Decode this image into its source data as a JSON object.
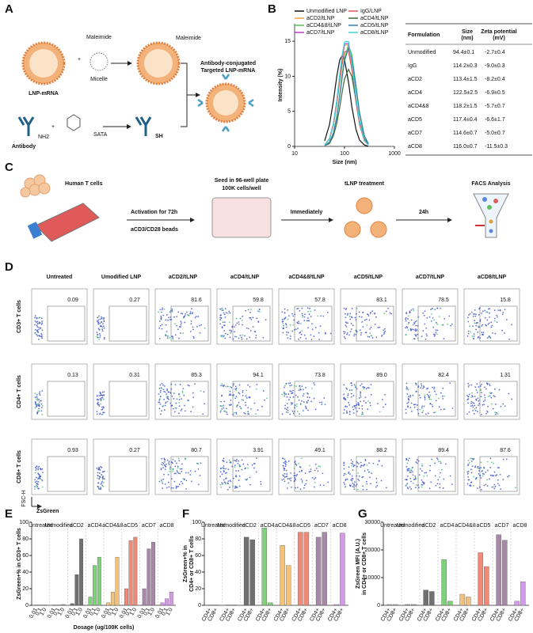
{
  "panel_labels": [
    "A",
    "B",
    "C",
    "D",
    "E",
    "F",
    "G"
  ],
  "diagram_a": {
    "lnp": "LNP-mRNA",
    "maleimide_top": "Maleimide",
    "micelle": "Micelle",
    "maleimide_right": "Maleimide",
    "antibody": "Antibody",
    "nh2": "NH2",
    "sata": "SATA",
    "sh": "SH",
    "product": [
      "Antibody-conjugated",
      "Targeted LNP-mRNA"
    ]
  },
  "workflow": {
    "human_t": "Human T cells",
    "activation": "Activation for 72h",
    "beads": "aCD3/CD28 beads",
    "seed": "Seed in 96-well plate",
    "cells": "100K cells/well",
    "immediately": "Immediately",
    "tlnp": "tLNP treatment",
    "h24": "24h",
    "facs": "FACS Analysis"
  },
  "table": {
    "header": [
      [
        "Formulation"
      ],
      [
        "Size",
        "(nm)"
      ],
      [
        "Zeta potential",
        "(mV)"
      ]
    ],
    "rows": [
      [
        "Unmodified",
        "94.4±0.1",
        "-2.7±0.4"
      ],
      [
        "IgG",
        "114.2±0.3",
        "-9.0±0.3"
      ],
      [
        "aCD2",
        "113.4±1.5",
        "-8.2±0.4"
      ],
      [
        "aCD4",
        "122.5±2.5",
        "-6.9±0.5"
      ],
      [
        "aCD4&8",
        "118.2±1.5",
        "-5.7±0.7"
      ],
      [
        "aCD5",
        "117.4±0.4",
        "-6.6±1.7"
      ],
      [
        "aCD7",
        "114.6±0.7",
        "-5.0±0.7"
      ],
      [
        "aCD8",
        "116.0±0.7",
        "-11.5±0.3"
      ]
    ]
  },
  "flow": {
    "columns": [
      "Untreated",
      "Umodified LNP",
      "aCD2/tLNP",
      "aCD4/tLNP",
      "aCD4&8/tLNP",
      "aCD5/tLNP",
      "aCD7/tLNP",
      "aCD8/tLNP"
    ],
    "rows": [
      "CD3+ T cells",
      "CD4+ T cells",
      "CD8+ T cells"
    ],
    "values": [
      [
        "0.09",
        "0.27",
        "81.6",
        "59.8",
        "57.8",
        "83.1",
        "78.5",
        "15.8"
      ],
      [
        "0.13",
        "0.31",
        "85.3",
        "94.1",
        "73.8",
        "89.0",
        "82.4",
        "1.31"
      ],
      [
        "0.93",
        "0.27",
        "80.7",
        "3.91",
        "49.1",
        "88.2",
        "89.4",
        "87.6"
      ]
    ],
    "y_axis": "FSC-H",
    "x_axis": "ZsGreen"
  },
  "chart_data": [
    {
      "type": "line",
      "xlabel": "Size (nm)",
      "ylabel": "Intensity (%)",
      "log_x": true,
      "x": [
        40,
        50,
        60,
        70,
        80,
        90,
        100,
        120,
        140,
        170,
        200,
        250,
        300
      ],
      "xlim": [
        10,
        1000
      ],
      "xticks": [
        10,
        100,
        1000
      ],
      "ylim": [
        0,
        17.5
      ],
      "yticks": [
        0,
        5,
        10,
        15
      ],
      "series": [
        {
          "name": "Unmodified LNP",
          "color": "#111111",
          "values": [
            0.8,
            3.1,
            6.5,
            10.0,
            12.3,
            13.0,
            12.4,
            9.2,
            5.7,
            2.4,
            0.9,
            0.2,
            0.0
          ]
        },
        {
          "name": "IgG/LNP",
          "color": "#e0574c",
          "values": [
            0.2,
            1.0,
            3.0,
            6.0,
            9.2,
            11.8,
            13.5,
            13.6,
            11.0,
            6.3,
            3.1,
            0.8,
            0.2
          ]
        },
        {
          "name": "aCD2/tLNP",
          "color": "#f2a43a",
          "values": [
            0.2,
            1.1,
            3.2,
            6.4,
            9.8,
            12.7,
            14.4,
            14.5,
            11.7,
            6.8,
            3.3,
            0.9,
            0.2
          ]
        },
        {
          "name": "aCD4/tLNP",
          "color": "#3d6b35",
          "values": [
            0.1,
            0.4,
            1.5,
            3.3,
            5.5,
            7.8,
            9.6,
            11.0,
            10.0,
            6.6,
            3.7,
            1.1,
            0.3
          ]
        },
        {
          "name": "aCD4&8/tLNP",
          "color": "#5cc050",
          "values": [
            0.1,
            0.6,
            1.9,
            4.3,
            7.3,
            10.3,
            12.6,
            14.5,
            13.1,
            8.7,
            4.9,
            1.5,
            0.4
          ]
        },
        {
          "name": "aCD5/tLNP",
          "color": "#2f7fb6",
          "values": [
            0.1,
            0.6,
            1.9,
            4.1,
            7.0,
            9.9,
            12.2,
            14.0,
            12.7,
            8.4,
            4.7,
            1.5,
            0.4
          ]
        },
        {
          "name": "aCD7/tLNP",
          "color": "#b43fc4",
          "values": [
            0.2,
            1.1,
            3.3,
            6.5,
            10.0,
            12.8,
            14.6,
            14.7,
            11.9,
            6.9,
            3.4,
            0.9,
            0.2
          ]
        },
        {
          "name": "aCD8/tLNP",
          "color": "#3ed6d6",
          "values": [
            0.2,
            1.1,
            3.3,
            6.6,
            10.2,
            13.1,
            14.9,
            15.0,
            12.1,
            7.0,
            3.5,
            0.9,
            0.2
          ]
        }
      ]
    },
    {
      "type": "bar",
      "xlabel": "Dosage (ug/100K cells)",
      "ylabel": [
        "ZsGreen+% in CD3+ T cells"
      ],
      "categories": [
        "0.01",
        "0.1",
        "1.0"
      ],
      "ylim": [
        0,
        100
      ],
      "yticks": [
        0,
        20,
        40,
        60,
        80,
        100
      ],
      "series": [
        {
          "name": "Untreated",
          "color": "#b0b0b0",
          "values": [
            0.5,
            0.5,
            0.5
          ]
        },
        {
          "name": "Unmodified",
          "color": "#9a9a9a",
          "values": [
            0.5,
            0.5,
            1
          ]
        },
        {
          "name": "aCD2",
          "color": "#707070",
          "values": [
            2,
            37,
            80
          ]
        },
        {
          "name": "aCD4",
          "color": "#7fd07a",
          "values": [
            10,
            48,
            58
          ]
        },
        {
          "name": "aCD4&8",
          "color": "#f2c27c",
          "values": [
            3,
            16,
            58
          ]
        },
        {
          "name": "aCD5",
          "color": "#ee8a78",
          "values": [
            20,
            78,
            82
          ]
        },
        {
          "name": "aCD7",
          "color": "#a888a8",
          "values": [
            20,
            68,
            76
          ]
        },
        {
          "name": "aCD8",
          "color": "#d39be6",
          "values": [
            3,
            8,
            16
          ]
        }
      ]
    },
    {
      "type": "bar",
      "ylabel": [
        "ZsGreen+% in",
        "CD4+ or CD8+ T cells"
      ],
      "categories": [
        "CD4+",
        "CD8+"
      ],
      "ylim": [
        0,
        100
      ],
      "yticks": [
        0,
        20,
        40,
        60,
        80,
        100
      ],
      "series": [
        {
          "name": "Untreated",
          "color": "#b0b0b0",
          "values": [
            0.5,
            0.5
          ]
        },
        {
          "name": "Unmodified",
          "color": "#9a9a9a",
          "values": [
            0.5,
            0.5
          ]
        },
        {
          "name": "aCD2",
          "color": "#707070",
          "values": [
            82,
            79
          ]
        },
        {
          "name": "aCD4",
          "color": "#7fd07a",
          "values": [
            93,
            3
          ]
        },
        {
          "name": "aCD4&8",
          "color": "#f2c27c",
          "values": [
            72,
            48
          ]
        },
        {
          "name": "aCD5",
          "color": "#ee8a78",
          "values": [
            88,
            88
          ]
        },
        {
          "name": "aCD7",
          "color": "#a888a8",
          "values": [
            82,
            88
          ]
        },
        {
          "name": "aCD8",
          "color": "#d39be6",
          "values": [
            1,
            87
          ]
        }
      ]
    },
    {
      "type": "bar",
      "ylabel": [
        "ZsGreen MFI (A.U.)",
        "in CD4+ or CD8+ T cells"
      ],
      "categories": [
        "CD4+",
        "CD8+"
      ],
      "ylim": [
        0,
        30000
      ],
      "yticks": [
        0,
        10000,
        20000,
        30000
      ],
      "series": [
        {
          "name": "Untreated",
          "color": "#b0b0b0",
          "values": [
            300,
            300
          ]
        },
        {
          "name": "Unmodified",
          "color": "#9a9a9a",
          "values": [
            300,
            300
          ]
        },
        {
          "name": "aCD2",
          "color": "#707070",
          "values": [
            5500,
            5000
          ]
        },
        {
          "name": "aCD4",
          "color": "#7fd07a",
          "values": [
            16500,
            1500
          ]
        },
        {
          "name": "aCD4&8",
          "color": "#f2c27c",
          "values": [
            4000,
            3000
          ]
        },
        {
          "name": "aCD5",
          "color": "#ee8a78",
          "values": [
            19000,
            14000
          ]
        },
        {
          "name": "aCD7",
          "color": "#a888a8",
          "values": [
            25500,
            23500
          ]
        },
        {
          "name": "aCD8",
          "color": "#d39be6",
          "values": [
            1500,
            8500
          ]
        }
      ]
    }
  ]
}
